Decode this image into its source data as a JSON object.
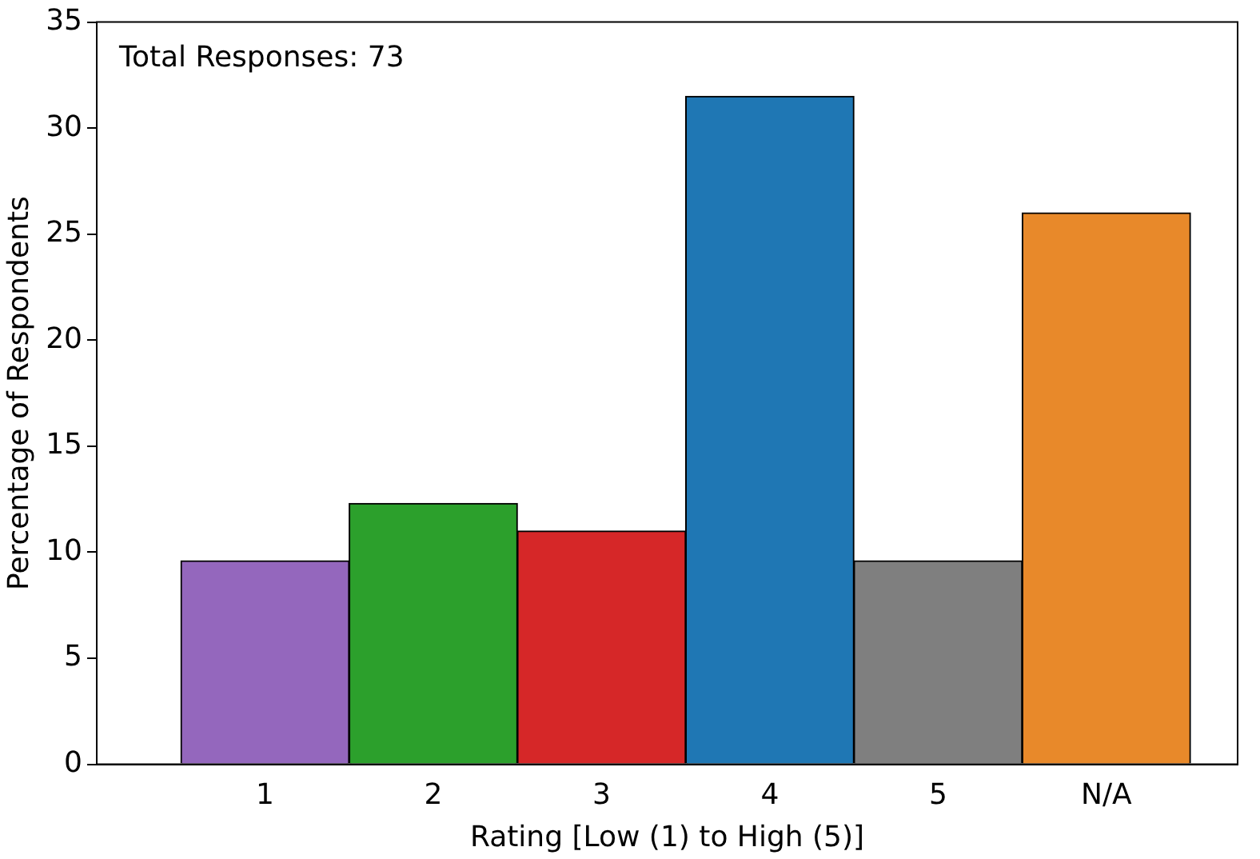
{
  "chart_data": {
    "type": "bar",
    "xlabel": "Rating [Low (1) to High (5)]",
    "ylabel": "Percentage of Respondents",
    "categories": [
      "1",
      "2",
      "3",
      "4",
      "5",
      "N/A"
    ],
    "values": [
      9.6,
      12.3,
      11.0,
      31.5,
      9.6,
      26.0
    ],
    "colors": [
      "#9467bd",
      "#2ca02c",
      "#d62728",
      "#1f77b4",
      "#7f7f7f",
      "#e8892a"
    ],
    "ylim": [
      0,
      35
    ],
    "yticks": [
      0,
      5,
      10,
      15,
      20,
      25,
      30,
      35
    ],
    "grid": false,
    "legend": false,
    "annotations": [
      "Total Responses: 73"
    ]
  }
}
